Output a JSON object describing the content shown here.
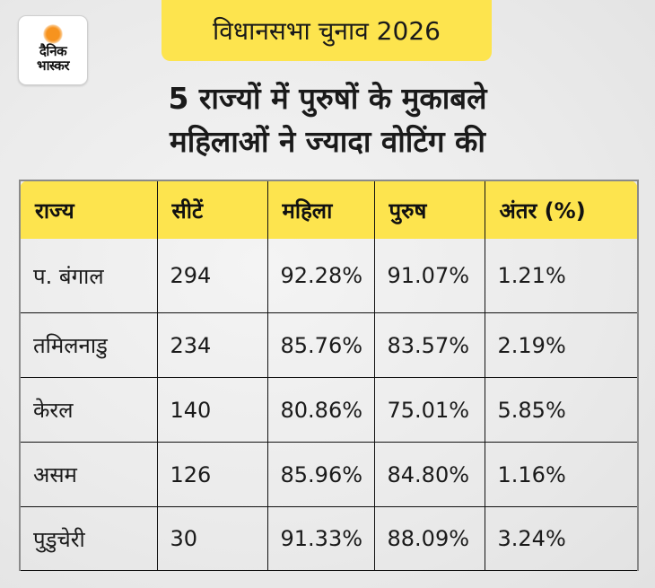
{
  "brand": {
    "icon": "sun-logo-icon",
    "line1": "दैनिक",
    "line2": "भास्कर",
    "accent_color": "#f7931e"
  },
  "tag": {
    "label": "विधानसभा चुनाव 2026",
    "color": "#fde44e"
  },
  "headline": {
    "line1": "5 राज्यों में पुरुषों के मुकाबले",
    "line2": "महिलाओं ने ज्यादा वोटिंग की"
  },
  "table": {
    "headers": [
      "राज्य",
      "सीटें",
      "महिला",
      "पुरुष",
      "अंतर (%)"
    ],
    "rows": [
      [
        "प. बंगाल",
        "294",
        "92.28%",
        "91.07%",
        "1.21%"
      ],
      [
        "तमिलनाडु",
        "234",
        "85.76%",
        "83.57%",
        "2.19%"
      ],
      [
        "केरल",
        "140",
        "80.86%",
        "75.01%",
        "5.85%"
      ],
      [
        "असम",
        "126",
        "85.96%",
        "84.80%",
        "1.16%"
      ],
      [
        "पुडुचेरी",
        "30",
        "91.33%",
        "88.09%",
        "3.24%"
      ]
    ]
  }
}
